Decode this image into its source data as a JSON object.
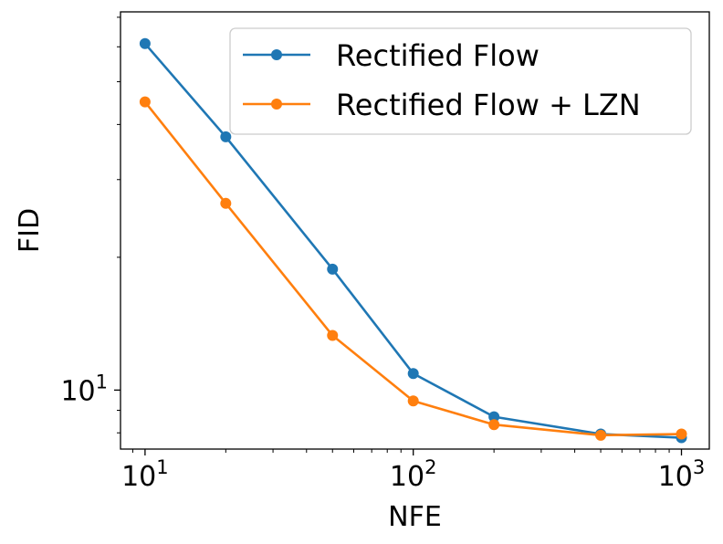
{
  "chart_data": {
    "type": "line",
    "xscale": "log",
    "yscale": "log",
    "xlabel": "NFE",
    "ylabel": "FID",
    "xlim": [
      8.1,
      1270
    ],
    "ylim": [
      7.35,
      72
    ],
    "legend_position": "top-right",
    "grid": false,
    "x_ticks": [
      {
        "value": 10,
        "base": "10",
        "exp": "1"
      },
      {
        "value": 100,
        "base": "10",
        "exp": "2"
      },
      {
        "value": 1000,
        "base": "10",
        "exp": "3"
      }
    ],
    "y_ticks": [
      {
        "value": 10,
        "base": "10",
        "exp": "1"
      }
    ],
    "x": [
      10,
      20,
      50,
      100,
      200,
      500,
      1000
    ],
    "series": [
      {
        "name": "Rectified Flow",
        "color": "#1f77b4",
        "values": [
          61.0,
          37.5,
          18.8,
          10.9,
          8.7,
          7.95,
          7.8
        ]
      },
      {
        "name": "Rectified Flow + LZN",
        "color": "#ff7f0e",
        "values": [
          45.0,
          26.5,
          13.3,
          9.45,
          8.35,
          7.9,
          7.95
        ]
      }
    ]
  }
}
